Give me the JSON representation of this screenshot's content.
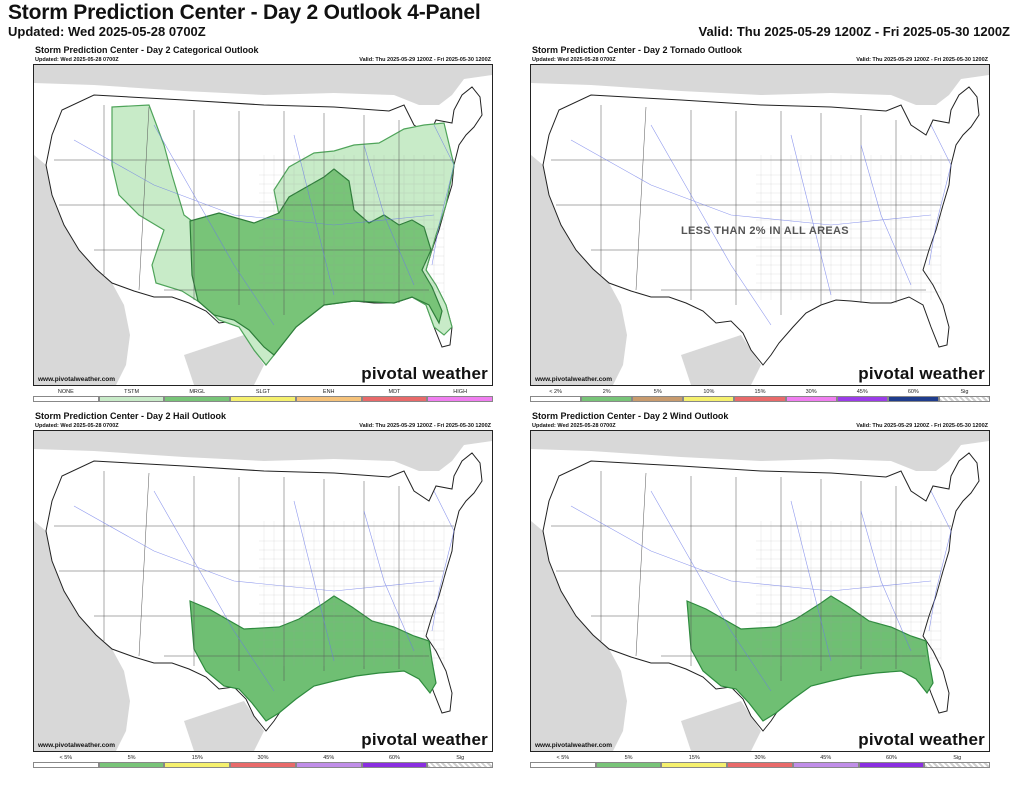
{
  "header": {
    "title": "Storm Prediction Center - Day 2 Outlook 4-Panel",
    "updated": "Updated: Wed 2025-05-28 0700Z",
    "valid": "Valid: Thu 2025-05-29 1200Z - Fri 2025-05-30 1200Z"
  },
  "colors": {
    "tstm": "#c8ebc8",
    "mrgl": "#78c478",
    "risk_green": "#6fbf73",
    "border": "#2e8b3e",
    "land_gray": "#d8d8d8",
    "city_blue": "#6b78e8"
  },
  "panels": [
    {
      "title": "Storm Prediction Center - Day 2 Categorical Outlook",
      "updated": "Updated: Wed 2025-05-28 0700Z",
      "valid": "Valid: Thu 2025-05-29 1200Z - Fri 2025-05-30 1200Z",
      "credit": "www.pivotalweather.com",
      "brand": "pivotal weather",
      "legend": [
        {
          "label": "NONE",
          "color": "#ffffff"
        },
        {
          "label": "TSTM",
          "color": "#c8ebc8"
        },
        {
          "label": "MRGL",
          "color": "#78c478"
        },
        {
          "label": "SLGT",
          "color": "#f5f06e"
        },
        {
          "label": "ENH",
          "color": "#f5c27a"
        },
        {
          "label": "MDT",
          "color": "#e86a6a"
        },
        {
          "label": "HIGH",
          "color": "#f07ef0"
        }
      ]
    },
    {
      "title": "Storm Prediction Center - Day 2 Tornado Outlook",
      "updated": "Updated: Wed 2025-05-28 0700Z",
      "valid": "Valid: Thu 2025-05-29 1200Z - Fri 2025-05-30 1200Z",
      "credit": "www.pivotalweather.com",
      "brand": "pivotal weather",
      "notice": "LESS THAN 2% IN ALL AREAS",
      "legend": [
        {
          "label": "< 2%",
          "color": "#ffffff"
        },
        {
          "label": "2%",
          "color": "#78c478"
        },
        {
          "label": "5%",
          "color": "#c89b6e"
        },
        {
          "label": "10%",
          "color": "#f5f06e"
        },
        {
          "label": "15%",
          "color": "#e86a6a"
        },
        {
          "label": "30%",
          "color": "#f07ef0"
        },
        {
          "label": "45%",
          "color": "#9b3ce8"
        },
        {
          "label": "60%",
          "color": "#1f3c8c"
        },
        {
          "label": "Sig",
          "color": "#e8e8e8"
        }
      ]
    },
    {
      "title": "Storm Prediction Center - Day 2 Hail Outlook",
      "updated": "Updated: Wed 2025-05-28 0700Z",
      "valid": "Valid: Thu 2025-05-29 1200Z - Fri 2025-05-30 1200Z",
      "credit": "www.pivotalweather.com",
      "brand": "pivotal weather",
      "legend": [
        {
          "label": "< 5%",
          "color": "#ffffff"
        },
        {
          "label": "5%",
          "color": "#78c478"
        },
        {
          "label": "15%",
          "color": "#f5f06e"
        },
        {
          "label": "30%",
          "color": "#e86a6a"
        },
        {
          "label": "45%",
          "color": "#c08ee8"
        },
        {
          "label": "60%",
          "color": "#8a2ee0"
        },
        {
          "label": "Sig",
          "color": "#e8e8e8"
        }
      ]
    },
    {
      "title": "Storm Prediction Center - Day 2 Wind Outlook",
      "updated": "Updated: Wed 2025-05-28 0700Z",
      "valid": "Valid: Thu 2025-05-29 1200Z - Fri 2025-05-30 1200Z",
      "credit": "www.pivotalweather.com",
      "brand": "pivotal weather",
      "legend": [
        {
          "label": "< 5%",
          "color": "#ffffff"
        },
        {
          "label": "5%",
          "color": "#78c478"
        },
        {
          "label": "15%",
          "color": "#f5f06e"
        },
        {
          "label": "30%",
          "color": "#e86a6a"
        },
        {
          "label": "45%",
          "color": "#c08ee8"
        },
        {
          "label": "60%",
          "color": "#8a2ee0"
        },
        {
          "label": "Sig",
          "color": "#e8e8e8"
        }
      ]
    }
  ]
}
